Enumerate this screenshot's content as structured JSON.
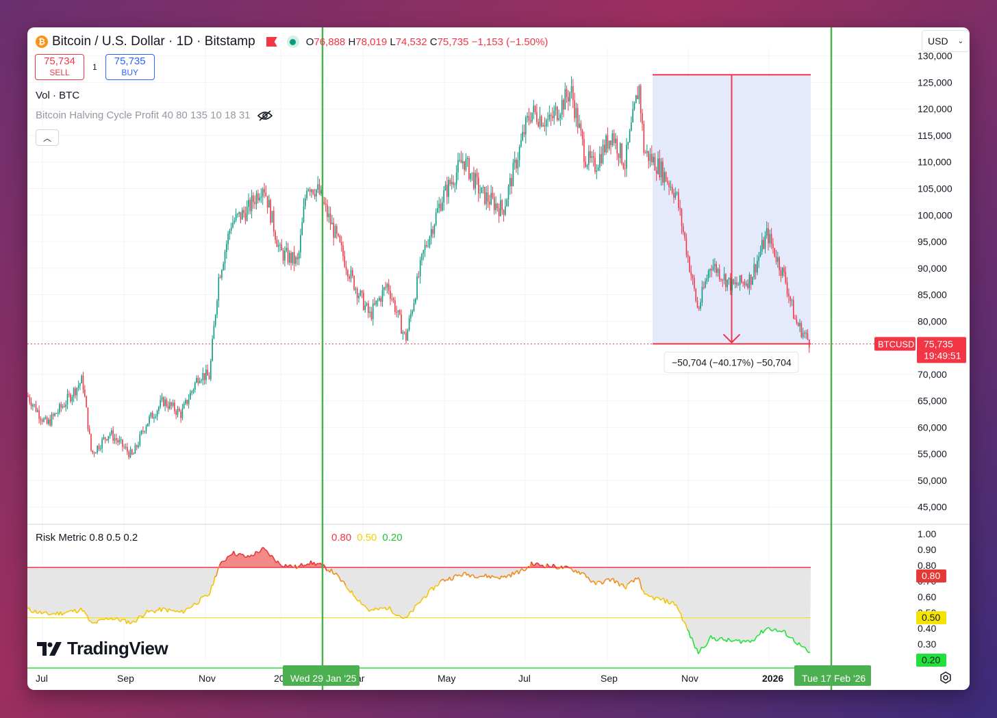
{
  "header": {
    "title": "Bitcoin / U.S. Dollar · 1D · Bitstamp",
    "ohlc": [
      {
        "label": "O",
        "value": "76,888"
      },
      {
        "label": "H",
        "value": "78,019"
      },
      {
        "label": "L",
        "value": "74,532"
      },
      {
        "label": "C",
        "value": "75,735"
      }
    ],
    "change": "−1,153 (−1.50%)"
  },
  "trade": {
    "sell_price": "75,734",
    "sell_label": "SELL",
    "quantity": "1",
    "buy_price": "75,735",
    "buy_label": "BUY"
  },
  "volume_label": "Vol · BTC",
  "indicator_label": "Bitcoin Halving Cycle Profit 40 80 135 10 18 31",
  "currency": "USD",
  "price_tag": {
    "symbol": "BTCUSD",
    "price": "75,735",
    "countdown": "19:49:51"
  },
  "measure_label": "−50,704 (−40.17%) −50,704",
  "risk": {
    "title": "Risk Metric 0.8 0.5 0.2",
    "values": [
      "0.80",
      "0.50",
      "0.20"
    ],
    "tags": [
      "0.80",
      "0.50",
      "0.20"
    ]
  },
  "brand": "TradingView",
  "date_tags": [
    "Wed 29 Jan '25",
    "Tue 17 Feb '26"
  ],
  "colors": {
    "up": "#089981",
    "down": "#f23645",
    "measure_fill": "#dfe6fb",
    "vline": "#4caf50",
    "high": "#f23645",
    "mid": "#f5e400",
    "low": "#22e03a"
  },
  "chart_data": [
    {
      "type": "candlestick",
      "title": "Bitcoin / U.S. Dollar · 1D · Bitstamp",
      "x_ticks": [
        "Jul",
        "Sep",
        "Nov",
        "20",
        "ar",
        "May",
        "Jul",
        "Sep",
        "Nov",
        "2026"
      ],
      "y_ticks": [
        "130,000",
        "125,000",
        "120,000",
        "115,000",
        "110,000",
        "105,000",
        "100,000",
        "95,000",
        "90,000",
        "85,000",
        "80,000",
        "70,000",
        "65,000",
        "60,000",
        "55,000",
        "50,000",
        "45,000"
      ],
      "ylim": [
        42000,
        131500
      ],
      "series": [
        {
          "name": "BTCUSD",
          "x": [
            "2024-06-16",
            "2024-07-01",
            "2024-07-15",
            "2024-07-29",
            "2024-08-05",
            "2024-08-19",
            "2024-09-06",
            "2024-09-16",
            "2024-09-30",
            "2024-10-14",
            "2024-10-28",
            "2024-11-05",
            "2024-11-12",
            "2024-11-22",
            "2024-12-05",
            "2024-12-17",
            "2024-12-30",
            "2025-01-13",
            "2025-01-20",
            "2025-01-29",
            "2025-02-10",
            "2025-02-24",
            "2025-03-10",
            "2025-03-24",
            "2025-04-07",
            "2025-04-21",
            "2025-05-05",
            "2025-05-22",
            "2025-06-05",
            "2025-06-22",
            "2025-07-10",
            "2025-07-14",
            "2025-07-28",
            "2025-08-14",
            "2025-08-25",
            "2025-09-01",
            "2025-09-15",
            "2025-09-25",
            "2025-10-06",
            "2025-10-10",
            "2025-10-22",
            "2025-11-04",
            "2025-11-21",
            "2025-12-01",
            "2025-12-18",
            "2026-01-01",
            "2026-01-14",
            "2026-01-28",
            "2026-02-05",
            "2026-02-17"
          ],
          "y": [
            66000,
            60500,
            64500,
            69000,
            55000,
            59000,
            54500,
            60500,
            65000,
            62500,
            70000,
            69500,
            88000,
            98500,
            101000,
            106000,
            93000,
            91000,
            106000,
            104500,
            97000,
            88000,
            81000,
            87000,
            76500,
            93000,
            103000,
            110500,
            104000,
            101000,
            117000,
            119500,
            117500,
            123500,
            111000,
            109000,
            115500,
            109500,
            124500,
            112000,
            109000,
            104000,
            82000,
            91000,
            86500,
            88000,
            96500,
            88000,
            80000,
            75735
          ]
        }
      ],
      "annotations": {
        "measure_from": 126439,
        "measure_to": 75735,
        "measure_change": "−50,704 (−40.17%)",
        "vertical_lines": [
          "2025-01-29",
          "2026-02-17"
        ]
      }
    },
    {
      "type": "area",
      "title": "Risk Metric 0.8 0.5 0.2",
      "y_ticks": [
        "1.00",
        "0.90",
        "0.80",
        "0.70",
        "0.60",
        "0.50",
        "0.40",
        "0.30",
        "0.20"
      ],
      "ylim": [
        0.2,
        1.0
      ],
      "thresholds": [
        0.8,
        0.5,
        0.2
      ],
      "series": [
        {
          "name": "Risk Metric",
          "x": [
            "2024-06-16",
            "2024-07-01",
            "2024-07-15",
            "2024-07-29",
            "2024-08-05",
            "2024-08-19",
            "2024-09-06",
            "2024-09-16",
            "2024-09-30",
            "2024-10-14",
            "2024-10-28",
            "2024-11-05",
            "2024-11-12",
            "2024-11-22",
            "2024-12-05",
            "2024-12-17",
            "2024-12-30",
            "2025-01-13",
            "2025-01-20",
            "2025-01-29",
            "2025-02-10",
            "2025-02-24",
            "2025-03-10",
            "2025-03-24",
            "2025-04-07",
            "2025-04-21",
            "2025-05-05",
            "2025-05-22",
            "2025-06-05",
            "2025-06-22",
            "2025-07-10",
            "2025-07-14",
            "2025-07-28",
            "2025-08-14",
            "2025-08-25",
            "2025-09-01",
            "2025-09-15",
            "2025-09-25",
            "2025-10-06",
            "2025-10-10",
            "2025-10-22",
            "2025-11-04",
            "2025-11-21",
            "2025-12-01",
            "2025-12-18",
            "2026-01-01",
            "2026-01-14",
            "2026-01-28",
            "2026-02-05",
            "2026-02-17"
          ],
          "y": [
            0.55,
            0.52,
            0.53,
            0.55,
            0.46,
            0.5,
            0.47,
            0.53,
            0.55,
            0.53,
            0.6,
            0.64,
            0.8,
            0.89,
            0.86,
            0.91,
            0.82,
            0.8,
            0.83,
            0.82,
            0.77,
            0.65,
            0.54,
            0.56,
            0.49,
            0.62,
            0.72,
            0.76,
            0.75,
            0.74,
            0.79,
            0.82,
            0.81,
            0.79,
            0.76,
            0.7,
            0.73,
            0.68,
            0.74,
            0.63,
            0.61,
            0.58,
            0.29,
            0.38,
            0.36,
            0.36,
            0.44,
            0.41,
            0.36,
            0.28
          ]
        }
      ]
    }
  ]
}
